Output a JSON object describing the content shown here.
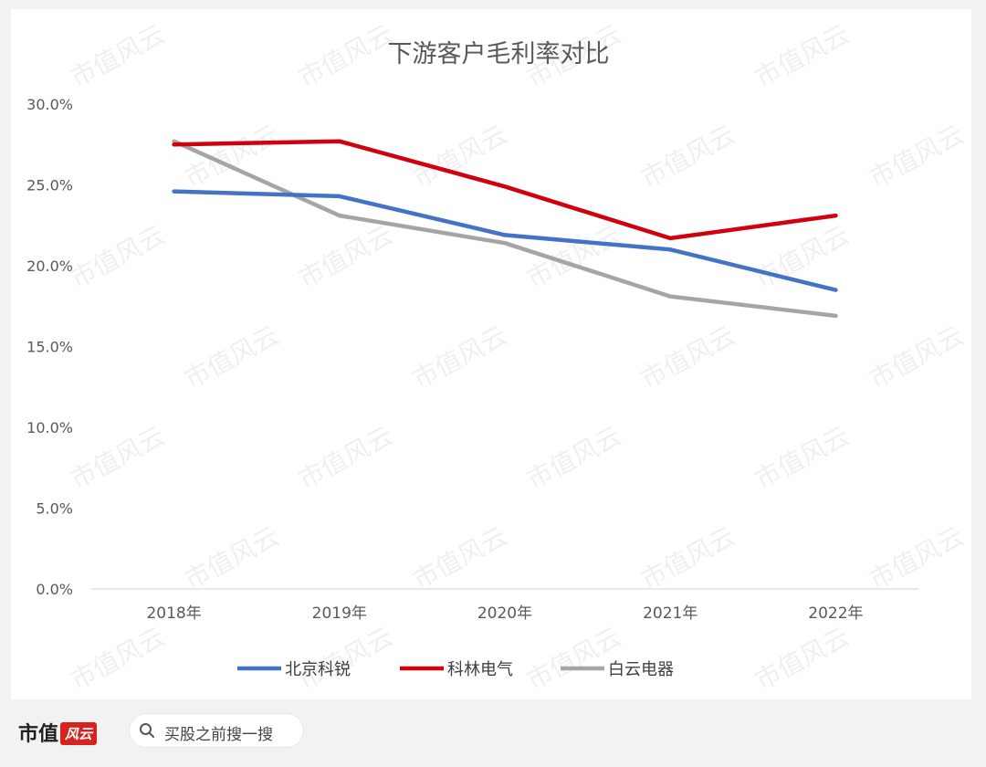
{
  "chart_data": {
    "type": "line",
    "title": "下游客户毛利率对比",
    "categories": [
      "2018年",
      "2019年",
      "2020年",
      "2021年",
      "2022年"
    ],
    "y_ticks": [
      "0.0%",
      "5.0%",
      "10.0%",
      "15.0%",
      "20.0%",
      "25.0%",
      "30.0%"
    ],
    "ylim": [
      0,
      30
    ],
    "grid": false,
    "legend_position": "bottom",
    "series": [
      {
        "name": "北京科锐",
        "color": "#4472c4",
        "values": [
          24.6,
          24.3,
          21.9,
          21.0,
          18.5
        ]
      },
      {
        "name": "科林电气",
        "color": "#d0000d",
        "values": [
          27.5,
          27.7,
          24.9,
          21.7,
          23.1
        ]
      },
      {
        "name": "白云电器",
        "color": "#a5a5a5",
        "values": [
          27.7,
          23.1,
          21.4,
          18.1,
          16.9
        ]
      }
    ]
  },
  "watermark_text": "市值风云",
  "footer": {
    "brand_prefix": "市值",
    "brand_badge": "风云",
    "search_icon": "search-icon",
    "search_text": "买股之前搜一搜"
  }
}
